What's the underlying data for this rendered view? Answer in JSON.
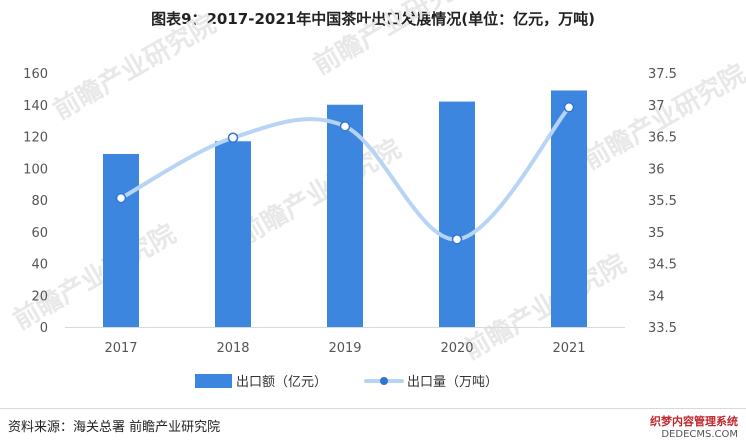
{
  "title": "图表9：2017-2021年中国茶叶出口发展情况(单位：亿元，万吨)",
  "source": "资料来源：海关总署 前瞻产业研究院",
  "watermark": "前瞻产业研究院",
  "corner_mark": {
    "line1": "织梦内容管理系统",
    "line2": "DEDECMS.COM"
  },
  "colors": {
    "bar": "#3d86e0",
    "line": "#b8d4f5",
    "marker_fill": "#ffffff",
    "marker_stroke": "#2f76d4"
  },
  "chart_data": {
    "type": "bar+line",
    "categories": [
      "2017",
      "2018",
      "2019",
      "2020",
      "2021"
    ],
    "series": [
      {
        "name": "出口额（亿元）",
        "type": "bar",
        "axis": "left",
        "values": [
          109,
          117,
          140,
          142,
          149
        ]
      },
      {
        "name": "出口量（万吨）",
        "type": "line",
        "axis": "right",
        "smooth": true,
        "values": [
          35.53,
          36.48,
          36.66,
          34.88,
          36.96
        ]
      }
    ],
    "y_left": {
      "min": 0,
      "max": 160,
      "step": 20,
      "ticks": [
        "0",
        "20",
        "40",
        "60",
        "80",
        "100",
        "120",
        "140",
        "160"
      ]
    },
    "y_right": {
      "min": 33.5,
      "max": 37.5,
      "step": 0.5,
      "ticks": [
        "33.5",
        "34",
        "34.5",
        "35",
        "35.5",
        "36",
        "36.5",
        "37",
        "37.5"
      ]
    },
    "grid": false,
    "legend_position": "bottom"
  }
}
